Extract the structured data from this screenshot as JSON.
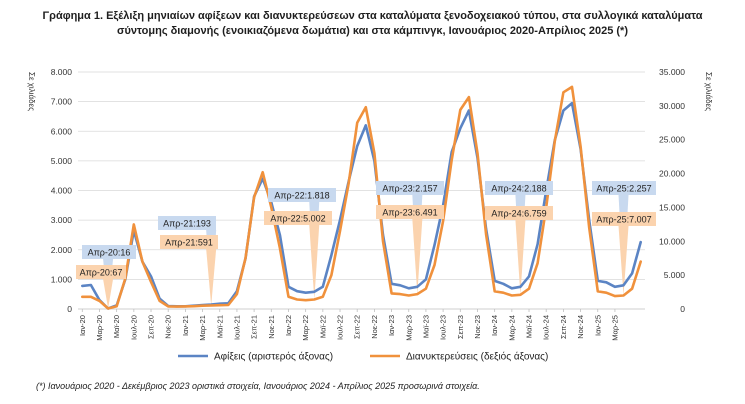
{
  "chart_data": {
    "type": "line",
    "title": [
      "Γράφημα 1. Εξέλιξη μηνιαίων αφίξεων και διανυκτερεύσεων στα καταλύματα ξενοδοχειακού τύπου, στα συλλογικά καταλύματα",
      "σύντομης διαμονής (ενοικιαζόμενα δωμάτια) και στα κάμπινγκ, Ιανουάριος 2020-Απρίλιος 2025 (*)"
    ],
    "ylabel_left": "Σε χιλιάδες",
    "ylabel_right": "Σε χιλιάδες",
    "ylim_left": [
      0,
      8000
    ],
    "ylim_right": [
      0,
      35000
    ],
    "yticks_left": [
      "0",
      "1.000",
      "2.000",
      "3.000",
      "4.000",
      "5.000",
      "6.000",
      "7.000",
      "8.000"
    ],
    "yticks_right": [
      "0",
      "5.000",
      "10.000",
      "15.000",
      "20.000",
      "25.000",
      "30.000",
      "35.000"
    ],
    "x_tick_labels": [
      "Ιαν-20",
      "Μαρ-20",
      "Μαϊ-20",
      "Ιουλ-20",
      "Σεπ-20",
      "Νοε-20",
      "Ιαν-21",
      "Μαρ-21",
      "Μαϊ-21",
      "Ιουλ-21",
      "Σεπ-21",
      "Νοε-21",
      "Ιαν-22",
      "Μαρ-22",
      "Μαϊ-22",
      "Ιουλ-22",
      "Σεπ-22",
      "Νοε-22",
      "Ιαν-23",
      "Μαρ-23",
      "Μαϊ-23",
      "Ιουλ-23",
      "Σεπ-23",
      "Νοε-23",
      "Ιαν-24",
      "Μαρ-24",
      "Μαϊ-24",
      "Ιουλ-24",
      "Σεπ-24",
      "Νοε-24",
      "Ιαν-25",
      "Μαρ-25"
    ],
    "grid": true,
    "legend_position": "bottom",
    "series": [
      {
        "name": "Αφίξεις (αριστερός άξονας)",
        "axis": "left",
        "color": "#5b84c4",
        "values": [
          780,
          810,
          300,
          16,
          120,
          1000,
          2650,
          1600,
          1100,
          350,
          100,
          90,
          90,
          110,
          130,
          150,
          180,
          193,
          600,
          1700,
          3800,
          4400,
          3600,
          2500,
          750,
          600,
          550,
          580,
          750,
          1818,
          3000,
          4300,
          5500,
          6200,
          5000,
          2500,
          850,
          800,
          700,
          750,
          1000,
          2157,
          3500,
          5300,
          6100,
          6700,
          5100,
          2700,
          950,
          850,
          700,
          750,
          1100,
          2188,
          4000,
          5700,
          6700,
          6950,
          5400,
          3000,
          950,
          900,
          750,
          800,
          1200,
          2257
        ]
      },
      {
        "name": "Διανυκτερεύσεις (δεξιός άξονας)",
        "axis": "right",
        "color": "#f0913c",
        "values": [
          1800,
          1800,
          1200,
          67,
          400,
          4500,
          12500,
          7000,
          4000,
          1200,
          380,
          360,
          380,
          420,
          480,
          520,
          560,
          591,
          2200,
          7500,
          16500,
          20200,
          15000,
          9000,
          1800,
          1400,
          1300,
          1400,
          1800,
          5002,
          11500,
          18500,
          27500,
          29800,
          23000,
          10000,
          2300,
          2200,
          2000,
          2200,
          3000,
          6491,
          13000,
          22000,
          29400,
          31300,
          23000,
          11000,
          2600,
          2400,
          2000,
          2100,
          3000,
          6759,
          15000,
          24800,
          32000,
          32800,
          24000,
          12000,
          2600,
          2400,
          1900,
          2000,
          3000,
          7007
        ]
      }
    ],
    "annotations": [
      {
        "text": "Απρ-20:16",
        "series": "Αφίξεις (αριστερός άξονας)"
      },
      {
        "text": "Απρ-20:67",
        "series": "Διανυκτερεύσεις (δεξιός άξονας)"
      },
      {
        "text": "Απρ-21:193",
        "series": "Αφίξεις (αριστερός άξονας)"
      },
      {
        "text": "Απρ-21:591",
        "series": "Διανυκτερεύσεις (δεξιός άξονας)"
      },
      {
        "text": "Απρ-22:1.818",
        "series": "Αφίξεις (αριστερός άξονας)"
      },
      {
        "text": "Απρ-22:5.002",
        "series": "Διανυκτερεύσεις (δεξιός άξονας)"
      },
      {
        "text": "Απρ-23:2.157",
        "series": "Αφίξεις (αριστερός άξονας)"
      },
      {
        "text": "Απρ-23:6.491",
        "series": "Διανυκτερεύσεις (δεξιός άξονας)"
      },
      {
        "text": "Απρ-24:2.188",
        "series": "Αφίξεις (αριστερός άξονας)"
      },
      {
        "text": "Απρ-24:6.759",
        "series": "Διανυκτερεύσεις (δεξιός άξονας)"
      },
      {
        "text": "Απρ-25:2.257",
        "series": "Αφίξεις (αριστερός άξονας)"
      },
      {
        "text": "Απρ-25:7.007",
        "series": "Διανυκτερεύσεις (δεξιός άξονας)"
      }
    ]
  },
  "footnote": "(*) Ιανουάριος 2020 - Δεκέμβριος 2023 οριστικά στοιχεία, Ιανουάριος 2024 - Απρίλιος 2025 προσωρινά στοιχεία."
}
